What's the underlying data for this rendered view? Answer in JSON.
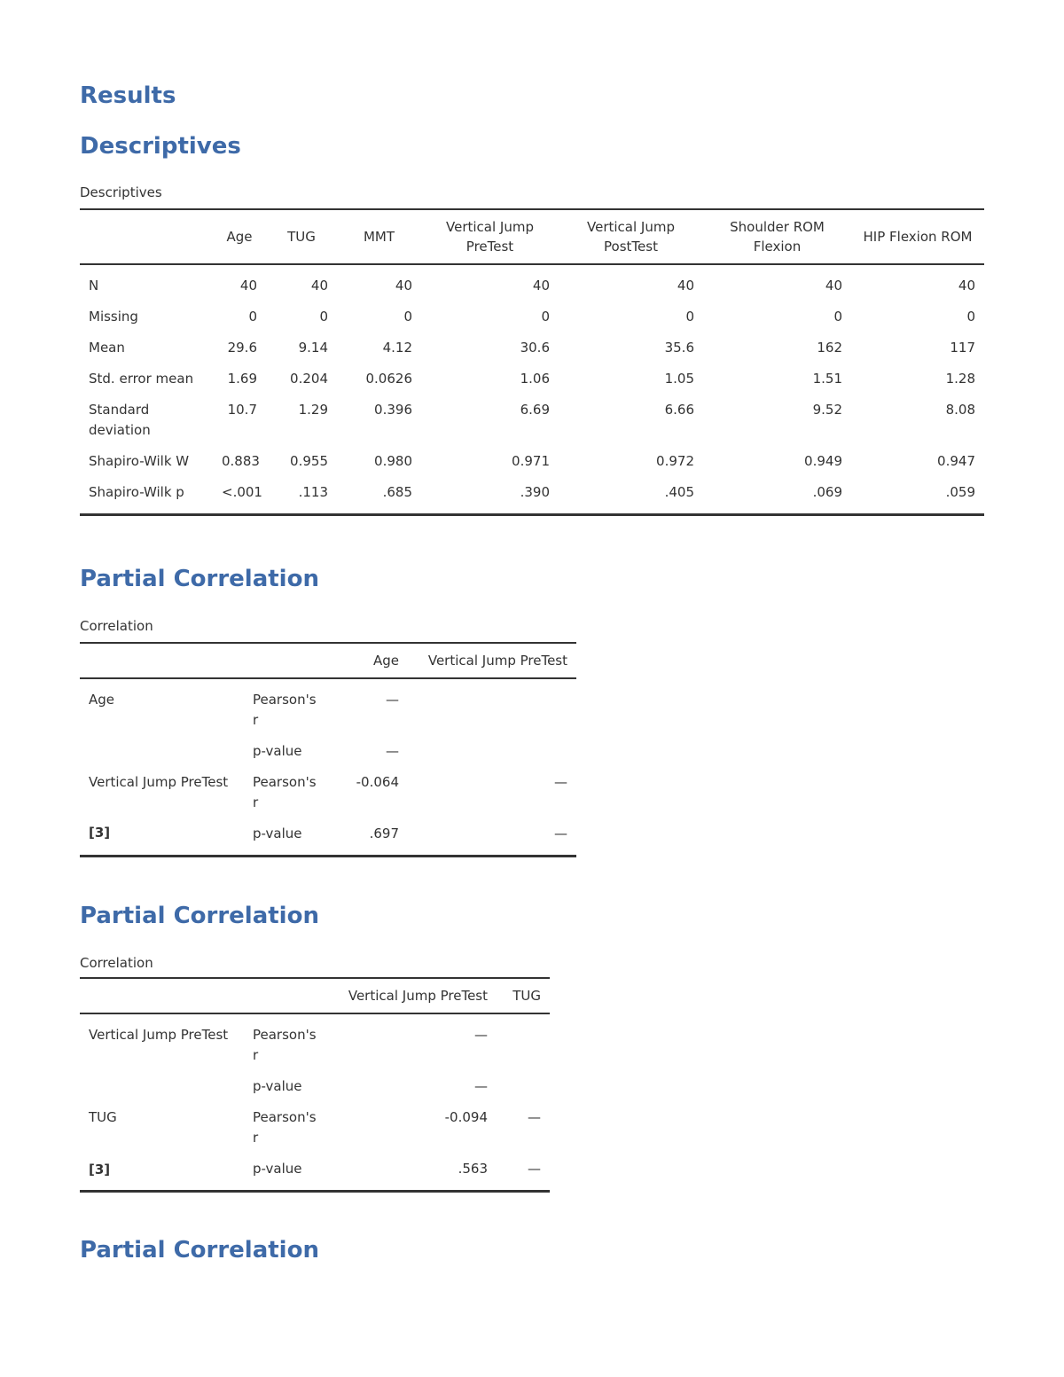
{
  "header": {
    "title": "Results"
  },
  "sections": [
    {
      "heading": "Descriptives",
      "caption": "Descriptives",
      "table": {
        "columns": [
          null,
          "Age",
          "TUG",
          "MMT",
          "Vertical Jump PreTest",
          "Vertical Jump PostTest",
          "Shoulder ROM Flexion",
          "HIP Flexion ROM"
        ],
        "rows": [
          [
            "N",
            "40",
            "40",
            "40",
            "40",
            "40",
            "40",
            "40"
          ],
          [
            "Missing",
            "0",
            "0",
            "0",
            "0",
            "0",
            "0",
            "0"
          ],
          [
            "Mean",
            "29.6",
            "9.14",
            "4.12",
            "30.6",
            "35.6",
            "162",
            "117"
          ],
          [
            "Std. error mean",
            "1.69",
            "0.204",
            "0.0626",
            "1.06",
            "1.05",
            "1.51",
            "1.28"
          ],
          [
            "Standard deviation",
            "10.7",
            "1.29",
            "0.396",
            "6.69",
            "6.66",
            "9.52",
            "8.08"
          ],
          [
            "Shapiro-Wilk W",
            "0.883",
            "0.955",
            "0.980",
            "0.971",
            "0.972",
            "0.949",
            "0.947"
          ],
          [
            "Shapiro-Wilk p",
            "<.001",
            ".113",
            ".685",
            ".390",
            ".405",
            ".069",
            ".059"
          ]
        ]
      }
    },
    {
      "heading": "Partial Correlation",
      "caption": "Correlation",
      "table": {
        "columns": [
          null,
          null,
          "Age",
          "Vertical Jump PreTest"
        ],
        "rows": [
          [
            "Age",
            "Pearson's r",
            "—",
            null
          ],
          [
            null,
            "p-value",
            "—",
            null
          ],
          [
            "Vertical Jump PreTest",
            "Pearson's r",
            "-0.064",
            "—"
          ],
          [
            null,
            "p-value",
            ".697",
            "—"
          ]
        ]
      },
      "footnote": "[3]"
    },
    {
      "heading": "Partial Correlation",
      "caption": "Correlation",
      "table": {
        "columns": [
          null,
          null,
          "Vertical Jump PreTest",
          "TUG"
        ],
        "rows": [
          [
            "Vertical Jump PreTest",
            "Pearson's r",
            "—",
            null
          ],
          [
            null,
            "p-value",
            "—",
            null
          ],
          [
            "TUG",
            "Pearson's r",
            "-0.094",
            "—"
          ],
          [
            null,
            "p-value",
            ".563",
            "—"
          ]
        ]
      },
      "footnote": "[3]"
    },
    {
      "heading": "Partial Correlation"
    }
  ]
}
